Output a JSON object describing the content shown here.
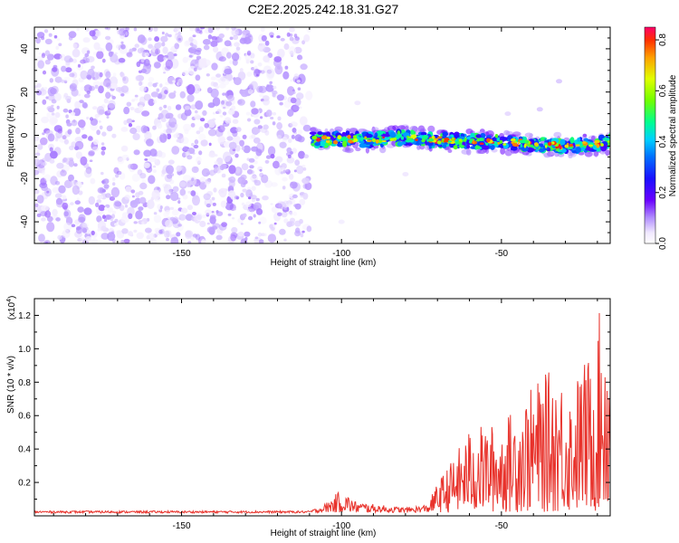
{
  "title": "C2E2.2025.242.18.31.G27",
  "chart_data": [
    {
      "type": "heatmap",
      "xlabel": "Height of straight line (km)",
      "ylabel": "Frequency (Hz)",
      "xlim": [
        -196,
        -16
      ],
      "ylim": [
        -50,
        50
      ],
      "xticks": [
        -150,
        -100,
        -50
      ],
      "xtick_labels": [
        "-150",
        "-100",
        "-50"
      ],
      "yticks": [
        -40,
        -20,
        0,
        20,
        40
      ],
      "ytick_labels": [
        "-40",
        "-20",
        "0",
        "20",
        "40"
      ],
      "colorbar": {
        "label": "Normalized spectral amplitude",
        "range": [
          0,
          0.85
        ],
        "ticks": [
          0,
          0.2,
          0.4,
          0.6,
          0.8
        ],
        "tick_labels": [
          "0.0",
          "0.2",
          "0.4",
          "0.6",
          "0.8"
        ]
      },
      "noise_region": {
        "x_range": [
          -196,
          -110
        ],
        "amplitude_range": [
          0.02,
          0.12
        ]
      },
      "signal_band": {
        "x_range": [
          -109,
          -16
        ],
        "frequency_hz": [
          [
            -107,
            -2
          ],
          [
            -100,
            -2
          ],
          [
            -90,
            -2
          ],
          [
            -80,
            -1
          ],
          [
            -75,
            -2
          ],
          [
            -70,
            -2
          ],
          [
            -60,
            -3
          ],
          [
            -50,
            -3
          ],
          [
            -40,
            -4
          ],
          [
            -30,
            -5
          ],
          [
            -20,
            -4
          ],
          [
            -16,
            -3
          ]
        ],
        "peak_amplitude": 0.84
      },
      "scattered_points": [
        {
          "x": -32,
          "y": 25,
          "amp": 0.06
        },
        {
          "x": -38,
          "y": 12,
          "amp": 0.06
        },
        {
          "x": -48,
          "y": 10,
          "amp": 0.05
        },
        {
          "x": -95,
          "y": 15,
          "amp": 0.04
        },
        {
          "x": -80,
          "y": -18,
          "amp": 0.04
        },
        {
          "x": -100,
          "y": -40,
          "amp": 0.03
        }
      ]
    },
    {
      "type": "line",
      "xlabel": "Height of straight line (km)",
      "ylabel": "SNR (10 * v/v)",
      "y_multiplier": "(x10",
      "y_multiplier_exp": "4",
      "y_multiplier_close": ")",
      "xlim": [
        -196,
        -16
      ],
      "ylim": [
        0,
        1.3
      ],
      "xticks": [
        -150,
        -100,
        -50
      ],
      "xtick_labels": [
        "-150",
        "-100",
        "-50"
      ],
      "yticks": [
        0.2,
        0.4,
        0.6,
        0.8,
        1.0,
        1.2
      ],
      "ytick_labels": [
        "0.2",
        "0.4",
        "0.6",
        "0.8",
        "1.0",
        "1.2"
      ],
      "color": "#e8322b",
      "envelope": [
        [
          -196,
          0.03
        ],
        [
          -150,
          0.03
        ],
        [
          -110,
          0.03
        ],
        [
          -106,
          0.06
        ],
        [
          -100,
          0.16
        ],
        [
          -96,
          0.09
        ],
        [
          -90,
          0.07
        ],
        [
          -80,
          0.05
        ],
        [
          -73,
          0.07
        ],
        [
          -70,
          0.2
        ],
        [
          -65,
          0.35
        ],
        [
          -60,
          0.52
        ],
        [
          -55,
          0.55
        ],
        [
          -50,
          0.55
        ],
        [
          -45,
          0.68
        ],
        [
          -38,
          0.82
        ],
        [
          -33,
          0.9
        ],
        [
          -28,
          0.75
        ],
        [
          -25,
          0.92
        ],
        [
          -21,
          1.0
        ],
        [
          -19,
          1.27
        ],
        [
          -17,
          1.25
        ],
        [
          -16,
          0.85
        ]
      ],
      "minimum_level": 0.02
    }
  ]
}
